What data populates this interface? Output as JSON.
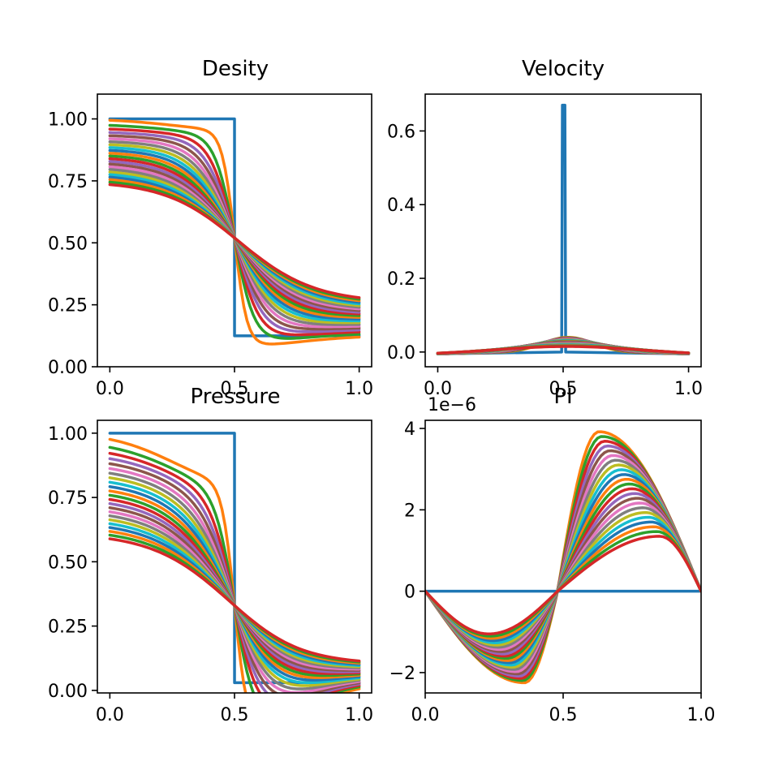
{
  "chart_data": [
    {
      "type": "line",
      "title": "Desity",
      "xlabel": "",
      "ylabel": "",
      "xlim": [
        -0.05,
        1.05
      ],
      "ylim": [
        0.0,
        1.1
      ],
      "x_ticks": [
        0.0,
        0.5,
        1.0
      ],
      "x_tick_labels": [
        "0.0",
        "0.5",
        "1.0"
      ],
      "y_ticks": [
        0.0,
        0.25,
        0.5,
        0.75,
        1.0
      ],
      "y_tick_labels": [
        "0.00",
        "0.25",
        "0.50",
        "0.75",
        "1.00"
      ],
      "grid": false,
      "profile": "density",
      "series_count": 24,
      "initial": {
        "left": 1.0,
        "right": 0.125,
        "jump_x": 0.5
      },
      "final": {
        "left": 0.75,
        "right": 0.26,
        "center": 0.52
      },
      "curve_points": 81
    },
    {
      "type": "line",
      "title": "Velocity",
      "xlabel": "",
      "ylabel": "",
      "xlim": [
        -0.05,
        1.05
      ],
      "ylim": [
        -0.04,
        0.7
      ],
      "x_ticks": [
        0.0,
        0.5,
        1.0
      ],
      "x_tick_labels": [
        "0.0",
        "0.5",
        "1.0"
      ],
      "y_ticks": [
        0.0,
        0.2,
        0.4,
        0.6
      ],
      "y_tick_labels": [
        "0.0",
        "0.2",
        "0.4",
        "0.6"
      ],
      "grid": false,
      "profile": "velocity",
      "series_count": 24,
      "spike": {
        "x_start": 0.497,
        "x_end": 0.507,
        "peak": 0.67
      },
      "bump_max": 0.04,
      "curve_points": 81
    },
    {
      "type": "line",
      "title": "Pressure",
      "xlabel": "",
      "ylabel": "",
      "xlim": [
        -0.05,
        1.05
      ],
      "ylim": [
        -0.01,
        1.05
      ],
      "x_ticks": [
        0.0,
        0.5,
        1.0
      ],
      "x_tick_labels": [
        "0.0",
        "0.5",
        "1.0"
      ],
      "y_ticks": [
        0.0,
        0.25,
        0.5,
        0.75,
        1.0
      ],
      "y_tick_labels": [
        "0.00",
        "0.25",
        "0.50",
        "0.75",
        "1.00"
      ],
      "grid": false,
      "profile": "pressure",
      "series_count": 24,
      "initial": {
        "left": 1.0,
        "right": 0.03,
        "jump_x": 0.5
      },
      "final": {
        "left": 0.61,
        "right": 0.1,
        "center": 0.33
      },
      "curve_points": 81
    },
    {
      "type": "line",
      "title": "PI",
      "xlabel": "",
      "ylabel": "",
      "offset_text": "1e−6",
      "xlim": [
        0.0,
        1.0
      ],
      "ylim": [
        -2.5,
        4.2
      ],
      "x_ticks": [
        0.0,
        0.5,
        1.0
      ],
      "x_tick_labels": [
        "0.0",
        "0.5",
        "1.0"
      ],
      "y_ticks": [
        -2,
        0,
        2,
        4
      ],
      "y_tick_labels": [
        "−2",
        "0",
        "2",
        "4"
      ],
      "grid": false,
      "profile": "pi",
      "series_count": 24,
      "zero_x": 0.48,
      "first_curve": {
        "min": -2.25,
        "min_x": 0.36,
        "max": 3.92,
        "max_x": 0.63
      },
      "last_curve": {
        "min": -1.05,
        "min_x": 0.23,
        "max": 1.35,
        "max_x": 0.85
      },
      "curve_points": 81
    }
  ],
  "colors": [
    "#1f77b4",
    "#ff7f0e",
    "#2ca02c",
    "#d62728",
    "#9467bd",
    "#8c564b",
    "#e377c2",
    "#7f7f7f",
    "#bcbd22",
    "#17becf"
  ]
}
